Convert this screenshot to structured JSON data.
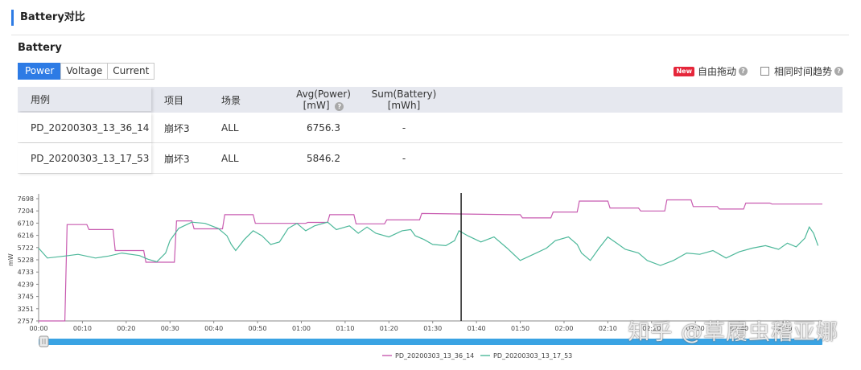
{
  "section_title": "Battery对比",
  "card": {
    "title": "Battery",
    "tabs": [
      {
        "label": "Power",
        "active": true
      },
      {
        "label": "Voltage",
        "active": false
      },
      {
        "label": "Current",
        "active": false
      }
    ],
    "controls": {
      "new_badge": "New",
      "free_drag_label": "自由拖动",
      "same_time_trend_label": "相同时间趋势"
    }
  },
  "table": {
    "headers": {
      "case": "用例",
      "item": "项目",
      "scene": "场景",
      "avg_line1": "Avg(Power)",
      "avg_line2": "[mW]",
      "sum_line1": "Sum(Battery)",
      "sum_line2": "[mWh]"
    },
    "rows": [
      {
        "case": "PD_20200303_13_36_14",
        "item": "崩坏3",
        "scene": "ALL",
        "avg": "6756.3",
        "sum": "-"
      },
      {
        "case": "PD_20200303_13_17_53",
        "item": "崩坏3",
        "scene": "ALL",
        "avg": "5846.2",
        "sum": "-"
      }
    ]
  },
  "watermark": "知乎 @草履虫稽亚娜",
  "chart_data": {
    "type": "line",
    "ylabel": "mW",
    "y_ticks": [
      2757,
      3251,
      3745,
      4239,
      4733,
      5228,
      5722,
      6216,
      6710,
      7204,
      7698
    ],
    "ylim": [
      2757,
      7698
    ],
    "x_ticks": [
      "00:00",
      "00:10",
      "00:20",
      "00:30",
      "00:40",
      "00:50",
      "01:00",
      "01:10",
      "01:20",
      "01:30",
      "01:40",
      "01:50",
      "02:00",
      "02:10",
      "02:20",
      "02:30",
      "02:40",
      "02:50",
      "03:00"
    ],
    "xlim_minutes": [
      0,
      179
    ],
    "cursor_minute": 96.5,
    "series": [
      {
        "name": "PD_20200303_13_36_14",
        "color": "#c85bb0",
        "points": [
          [
            0,
            2757
          ],
          [
            6,
            2757
          ],
          [
            6.5,
            6650
          ],
          [
            11,
            6650
          ],
          [
            11.5,
            6450
          ],
          [
            17,
            6450
          ],
          [
            17.5,
            5600
          ],
          [
            24,
            5600
          ],
          [
            24.5,
            5130
          ],
          [
            31,
            5130
          ],
          [
            31.5,
            6800
          ],
          [
            35,
            6800
          ],
          [
            35.5,
            6480
          ],
          [
            42,
            6480
          ],
          [
            42.5,
            7050
          ],
          [
            49,
            7050
          ],
          [
            49.5,
            6700
          ],
          [
            61,
            6700
          ],
          [
            61.5,
            6740
          ],
          [
            66,
            6740
          ],
          [
            66.5,
            7050
          ],
          [
            72,
            7050
          ],
          [
            72.5,
            6680
          ],
          [
            79,
            6680
          ],
          [
            79.5,
            6840
          ],
          [
            87,
            6840
          ],
          [
            87.5,
            7100
          ],
          [
            108,
            7050
          ],
          [
            110,
            7050
          ],
          [
            110.5,
            6920
          ],
          [
            117,
            6920
          ],
          [
            117.5,
            7160
          ],
          [
            123,
            7160
          ],
          [
            123.5,
            7600
          ],
          [
            130,
            7600
          ],
          [
            130.5,
            7320
          ],
          [
            137,
            7320
          ],
          [
            137.5,
            7200
          ],
          [
            143,
            7200
          ],
          [
            143.5,
            7650
          ],
          [
            149,
            7650
          ],
          [
            149.5,
            7380
          ],
          [
            155,
            7380
          ],
          [
            155.5,
            7280
          ],
          [
            161,
            7280
          ],
          [
            161.5,
            7520
          ],
          [
            167,
            7520
          ],
          [
            167.5,
            7480
          ],
          [
            179,
            7480
          ]
        ]
      },
      {
        "name": "PD_20200303_13_17_53",
        "color": "#4db89a",
        "points": [
          [
            0,
            5700
          ],
          [
            2,
            5300
          ],
          [
            6,
            5380
          ],
          [
            9,
            5450
          ],
          [
            13,
            5300
          ],
          [
            16,
            5380
          ],
          [
            19,
            5500
          ],
          [
            23,
            5400
          ],
          [
            25,
            5250
          ],
          [
            27,
            5150
          ],
          [
            29,
            5500
          ],
          [
            30,
            6000
          ],
          [
            32,
            6500
          ],
          [
            35,
            6750
          ],
          [
            38,
            6700
          ],
          [
            41,
            6500
          ],
          [
            43,
            6200
          ],
          [
            44,
            5850
          ],
          [
            45,
            5600
          ],
          [
            47,
            6050
          ],
          [
            49,
            6400
          ],
          [
            51,
            6200
          ],
          [
            53,
            5850
          ],
          [
            55,
            5950
          ],
          [
            57,
            6500
          ],
          [
            59,
            6700
          ],
          [
            61,
            6400
          ],
          [
            63,
            6600
          ],
          [
            66,
            6750
          ],
          [
            68,
            6450
          ],
          [
            71,
            6600
          ],
          [
            73,
            6300
          ],
          [
            75,
            6550
          ],
          [
            77,
            6300
          ],
          [
            80,
            6150
          ],
          [
            83,
            6400
          ],
          [
            85,
            6450
          ],
          [
            86,
            6200
          ],
          [
            88,
            6050
          ],
          [
            90,
            5850
          ],
          [
            93,
            5800
          ],
          [
            95,
            6000
          ],
          [
            96,
            6400
          ],
          [
            98,
            6200
          ],
          [
            101,
            5950
          ],
          [
            104,
            6150
          ],
          [
            107,
            5700
          ],
          [
            110,
            5200
          ],
          [
            113,
            5450
          ],
          [
            116,
            5700
          ],
          [
            118,
            6000
          ],
          [
            121,
            6150
          ],
          [
            123,
            5850
          ],
          [
            124,
            5500
          ],
          [
            126,
            5200
          ],
          [
            128,
            5700
          ],
          [
            130,
            6150
          ],
          [
            132,
            5900
          ],
          [
            134,
            5650
          ],
          [
            137,
            5500
          ],
          [
            139,
            5200
          ],
          [
            142,
            5000
          ],
          [
            145,
            5200
          ],
          [
            148,
            5500
          ],
          [
            151,
            5450
          ],
          [
            154,
            5600
          ],
          [
            157,
            5300
          ],
          [
            160,
            5550
          ],
          [
            163,
            5700
          ],
          [
            166,
            5800
          ],
          [
            169,
            5650
          ],
          [
            171,
            5900
          ],
          [
            173,
            5750
          ],
          [
            175,
            6100
          ],
          [
            176,
            6550
          ],
          [
            177,
            6300
          ],
          [
            178,
            5800
          ]
        ]
      }
    ]
  }
}
